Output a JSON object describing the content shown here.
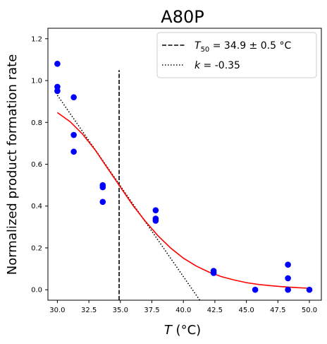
{
  "chart_data": {
    "type": "scatter",
    "title": "A80P",
    "xlabel_symbol": "T",
    "xlabel_unit": " (°C)",
    "ylabel": "Normalized product formation rate",
    "xlim": [
      29.25,
      50.95
    ],
    "ylim": [
      -0.05,
      1.25
    ],
    "x_ticks": [
      "30.0",
      "32.5",
      "35.0",
      "37.5",
      "40.0",
      "42.5",
      "45.0",
      "47.5",
      "50.0"
    ],
    "y_ticks": [
      "0.0",
      "0.2",
      "0.4",
      "0.6",
      "0.8",
      "1.0",
      "1.2"
    ],
    "grid": false,
    "legend_position": "top-right",
    "colors": {
      "points": "#0000ff",
      "fit": "#ff0000",
      "lines": "#000000"
    },
    "series": [
      {
        "type": "scatter",
        "x": [
          30.0,
          30.0,
          30.0,
          31.3,
          31.3,
          31.3,
          33.6,
          33.6,
          33.6,
          37.8,
          37.8,
          37.8,
          42.4,
          42.4,
          45.7,
          48.3,
          48.3,
          48.3,
          50.0
        ],
        "y": [
          1.08,
          0.97,
          0.95,
          0.92,
          0.74,
          0.66,
          0.5,
          0.49,
          0.42,
          0.38,
          0.34,
          0.33,
          0.09,
          0.08,
          0.0,
          0.12,
          0.055,
          0.0,
          0.0
        ]
      },
      {
        "type": "line",
        "style": "solid",
        "x": [
          30.0,
          31.0,
          32.0,
          33.0,
          34.0,
          34.9,
          36.0,
          37.0,
          38.0,
          39.0,
          40.0,
          41.0,
          42.0,
          43.0,
          44.0,
          45.0,
          46.0,
          47.0,
          48.0,
          49.0,
          50.0
        ],
        "y": [
          0.847,
          0.804,
          0.744,
          0.668,
          0.579,
          0.5,
          0.403,
          0.326,
          0.257,
          0.199,
          0.151,
          0.114,
          0.085,
          0.063,
          0.047,
          0.034,
          0.025,
          0.019,
          0.014,
          0.01,
          0.007
        ]
      }
    ],
    "legend": [
      {
        "style": "dashed",
        "label_symbol": "T",
        "label_sub": "50",
        "label_text": " = 34.9 ± 0.5 °C",
        "x": 34.9,
        "y_range": [
          -0.05,
          1.05
        ]
      },
      {
        "style": "dotted",
        "label_symbol": "k",
        "label_text": " = -0.35",
        "x_range": [
          30.0,
          41.3
        ],
        "y_range": [
          0.93,
          -0.05
        ]
      }
    ]
  }
}
